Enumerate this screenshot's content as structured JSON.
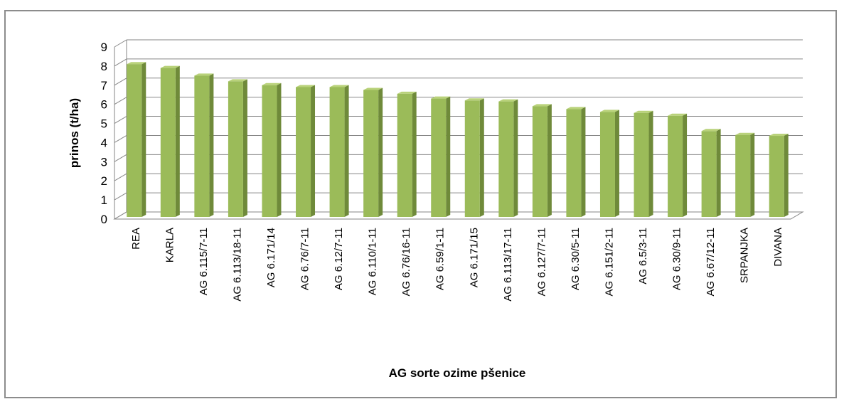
{
  "chart_data": {
    "type": "bar",
    "title": "",
    "xlabel": "AG sorte ozime pšenice",
    "ylabel": "prinos (t/ha)",
    "ylim": [
      0,
      9
    ],
    "yticks": [
      0,
      1,
      2,
      3,
      4,
      5,
      6,
      7,
      8,
      9
    ],
    "grid": true,
    "legend": "none",
    "style": "3d-column",
    "categories": [
      "REA",
      "KARLA",
      "AG 6.115/7-11",
      "AG 6.113/18-11",
      "AG 6.171/14",
      "AG 6.76/7-11",
      "AG 6.12/7-11",
      "AG 6.110/1-11",
      "AG 6.76/16-11",
      "AG 6.59/1-11",
      "AG 6.171/15",
      "AG 6.113/17-11",
      "AG 6.127/7-11",
      "AG 6.30/5-11",
      "AG 6.151/2-11",
      "AG 6.5/3-11",
      "AG 6.30/9-11",
      "AG 6.67/12-11",
      "SRPANJKA",
      "DIVANA"
    ],
    "values": [
      8.1,
      7.9,
      7.5,
      7.2,
      7.0,
      6.9,
      6.9,
      6.75,
      6.55,
      6.3,
      6.2,
      6.15,
      5.9,
      5.75,
      5.6,
      5.55,
      5.4,
      4.6,
      4.4,
      4.35
    ],
    "colors": {
      "bar_front": "#9bbb59",
      "bar_side": "#6f8a3a",
      "bar_top": "#b9d27a",
      "gridline": "#868686",
      "frame": "#8c8c8c"
    }
  }
}
